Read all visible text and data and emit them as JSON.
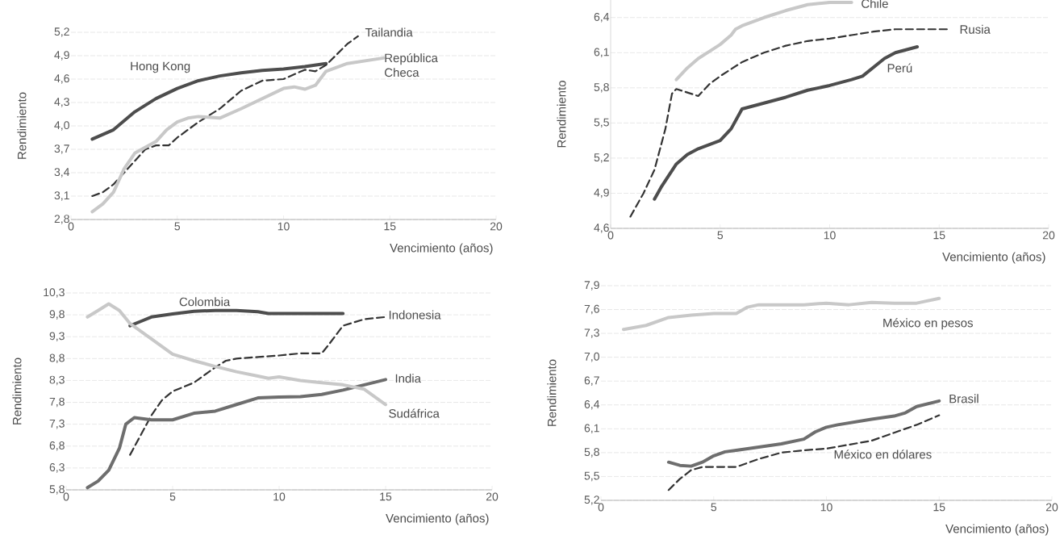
{
  "chart_data": [
    {
      "type": "line",
      "xlabel": "Vencimiento (años)",
      "ylabel": "Rendimiento",
      "xlim": [
        0,
        20
      ],
      "xticks": [
        0,
        5,
        10,
        15,
        20
      ],
      "ylim": [
        2.8,
        5.2
      ],
      "yticks": [
        {
          "value": 2.8,
          "label": "2,8"
        },
        {
          "value": 3.1,
          "label": "3,1"
        },
        {
          "value": 3.4,
          "label": "3,4"
        },
        {
          "value": 3.7,
          "label": "3,7"
        },
        {
          "value": 4.0,
          "label": "4,0"
        },
        {
          "value": 4.3,
          "label": "4,3"
        },
        {
          "value": 4.6,
          "label": "4,6"
        },
        {
          "value": 4.9,
          "label": "4,9"
        },
        {
          "value": 5.2,
          "label": "5,2"
        }
      ],
      "grid": "y",
      "marker": "none",
      "series": [
        {
          "name": "Hong Kong",
          "color": "#4d4d4d",
          "x": [
            1,
            2,
            3,
            4,
            5,
            6,
            7,
            8,
            9,
            10,
            11,
            12
          ],
          "values": [
            3.83,
            3.95,
            4.18,
            4.35,
            4.48,
            4.58,
            4.64,
            4.68,
            4.71,
            4.73,
            4.76,
            4.8
          ]
        },
        {
          "name": "Tailandia",
          "color": "#333333",
          "line_style": "dashed",
          "x": [
            1,
            1.5,
            2,
            3,
            3.5,
            4,
            4.6,
            5,
            6,
            7,
            8,
            9,
            10,
            11,
            11.5,
            12,
            13,
            13.5
          ],
          "values": [
            3.1,
            3.15,
            3.25,
            3.55,
            3.7,
            3.75,
            3.75,
            3.85,
            4.05,
            4.22,
            4.45,
            4.58,
            4.6,
            4.72,
            4.7,
            4.78,
            5.05,
            5.15
          ]
        },
        {
          "name": "República Checa",
          "color": "#c8c8c8",
          "x": [
            1,
            1.5,
            2,
            2.5,
            3,
            4,
            4.5,
            5,
            5.5,
            6,
            7,
            8,
            9,
            10,
            10.5,
            11,
            11.5,
            12,
            13,
            14.7
          ],
          "values": [
            2.9,
            3.0,
            3.15,
            3.45,
            3.65,
            3.8,
            3.95,
            4.05,
            4.1,
            4.12,
            4.1,
            4.22,
            4.35,
            4.48,
            4.5,
            4.47,
            4.52,
            4.7,
            4.8,
            4.87
          ]
        }
      ]
    },
    {
      "type": "line",
      "xlabel": "Vencimiento (años)",
      "ylabel": "Rendimiento",
      "xlim": [
        0,
        20
      ],
      "xticks": [
        0,
        5,
        10,
        15,
        20
      ],
      "ylim": [
        4.6,
        6.55
      ],
      "yticks": [
        {
          "value": 4.6,
          "label": "4,6"
        },
        {
          "value": 4.9,
          "label": "4,9"
        },
        {
          "value": 5.2,
          "label": "5,2"
        },
        {
          "value": 5.5,
          "label": "5,5"
        },
        {
          "value": 5.8,
          "label": "5,8"
        },
        {
          "value": 6.1,
          "label": "6,1"
        },
        {
          "value": 6.4,
          "label": "6,4"
        }
      ],
      "grid": "y",
      "marker": "none",
      "series": [
        {
          "name": "Chile",
          "color": "#c8c8c8",
          "x": [
            3,
            3.5,
            4,
            4.5,
            5,
            5.5,
            5.7,
            6,
            7,
            8,
            9,
            10,
            11
          ],
          "values": [
            5.87,
            5.97,
            6.05,
            6.11,
            6.17,
            6.25,
            6.3,
            6.33,
            6.4,
            6.46,
            6.51,
            6.53,
            6.53
          ]
        },
        {
          "name": "Rusia",
          "color": "#333333",
          "line_style": "dashed",
          "x": [
            0.9,
            1.5,
            2,
            2.5,
            2.8,
            3,
            3.5,
            4,
            4.5,
            5,
            6,
            7,
            8,
            9,
            10,
            11,
            12,
            13,
            15.5
          ],
          "values": [
            4.7,
            4.9,
            5.1,
            5.45,
            5.75,
            5.79,
            5.76,
            5.73,
            5.83,
            5.9,
            6.02,
            6.1,
            6.16,
            6.2,
            6.22,
            6.25,
            6.28,
            6.3,
            6.3
          ]
        },
        {
          "name": "Perú",
          "color": "#4d4d4d",
          "x": [
            2,
            2.3,
            3,
            3.5,
            4,
            5,
            5.5,
            6,
            7,
            8,
            9,
            10,
            11,
            11.5,
            12.5,
            13,
            14
          ],
          "values": [
            4.85,
            4.95,
            5.15,
            5.23,
            5.28,
            5.35,
            5.45,
            5.62,
            5.67,
            5.72,
            5.78,
            5.82,
            5.87,
            5.9,
            6.05,
            6.1,
            6.15
          ]
        }
      ]
    },
    {
      "type": "line",
      "xlabel": "Vencimiento (años)",
      "ylabel": "Rendimiento",
      "xlim": [
        0,
        20
      ],
      "xticks": [
        0,
        5,
        10,
        15,
        20
      ],
      "ylim": [
        5.8,
        10.3
      ],
      "yticks": [
        {
          "value": 5.8,
          "label": "5,8"
        },
        {
          "value": 6.3,
          "label": "6,3"
        },
        {
          "value": 6.8,
          "label": "6,8"
        },
        {
          "value": 7.3,
          "label": "7,3"
        },
        {
          "value": 7.8,
          "label": "7,8"
        },
        {
          "value": 8.3,
          "label": "8,3"
        },
        {
          "value": 8.8,
          "label": "8,8"
        },
        {
          "value": 9.3,
          "label": "9,3"
        },
        {
          "value": 9.8,
          "label": "9,8"
        },
        {
          "value": 10.3,
          "label": "10,3"
        }
      ],
      "grid": "y",
      "marker": "none",
      "series": [
        {
          "name": "Colombia",
          "color": "#4d4d4d",
          "x": [
            3,
            3.5,
            4,
            5,
            6,
            7,
            8,
            9,
            9.5,
            11,
            13
          ],
          "values": [
            9.55,
            9.65,
            9.75,
            9.82,
            9.88,
            9.9,
            9.9,
            9.87,
            9.83,
            9.83,
            9.83
          ]
        },
        {
          "name": "Indonesia",
          "color": "#333333",
          "line_style": "dashed",
          "x": [
            3,
            3.5,
            4,
            4.5,
            5,
            6,
            7,
            7.5,
            8,
            10,
            11,
            12,
            12.3,
            13,
            14,
            15
          ],
          "values": [
            6.6,
            7.05,
            7.5,
            7.85,
            8.05,
            8.25,
            8.6,
            8.75,
            8.8,
            8.87,
            8.92,
            8.92,
            9.1,
            9.55,
            9.7,
            9.75
          ]
        },
        {
          "name": "India",
          "color": "#6e6e6e",
          "x": [
            1,
            1.5,
            2,
            2.5,
            2.8,
            3.2,
            4,
            5,
            6,
            7,
            8,
            9,
            10,
            11,
            12,
            13,
            14,
            15
          ],
          "values": [
            5.85,
            6.0,
            6.25,
            6.75,
            7.3,
            7.45,
            7.4,
            7.4,
            7.55,
            7.6,
            7.75,
            7.9,
            7.92,
            7.93,
            7.98,
            8.08,
            8.2,
            8.32
          ]
        },
        {
          "name": "Sudáfrica",
          "color": "#c8c8c8",
          "x": [
            1,
            1.5,
            2,
            2.5,
            3,
            4,
            5,
            6,
            7,
            8,
            9,
            9.5,
            10,
            11,
            12,
            13,
            14,
            15
          ],
          "values": [
            9.75,
            9.9,
            10.05,
            9.9,
            9.6,
            9.25,
            8.9,
            8.75,
            8.62,
            8.5,
            8.4,
            8.35,
            8.38,
            8.3,
            8.25,
            8.2,
            8.1,
            7.75
          ]
        }
      ]
    },
    {
      "type": "line",
      "xlabel": "Vencimiento (años)",
      "ylabel": "Rendimiento",
      "xlim": [
        0,
        20
      ],
      "xticks": [
        0,
        5,
        10,
        15,
        20
      ],
      "ylim": [
        5.2,
        7.9
      ],
      "yticks": [
        {
          "value": 5.2,
          "label": "5,2"
        },
        {
          "value": 5.5,
          "label": "5,5"
        },
        {
          "value": 5.8,
          "label": "5,8"
        },
        {
          "value": 6.1,
          "label": "6,1"
        },
        {
          "value": 6.4,
          "label": "6,4"
        },
        {
          "value": 6.7,
          "label": "6,7"
        },
        {
          "value": 7.0,
          "label": "7,0"
        },
        {
          "value": 7.3,
          "label": "7,3"
        },
        {
          "value": 7.6,
          "label": "7,6"
        },
        {
          "value": 7.9,
          "label": "7,9"
        }
      ],
      "grid": "y",
      "marker": "none",
      "series": [
        {
          "name": "México en pesos",
          "color": "#c8c8c8",
          "x": [
            1,
            2,
            3,
            4,
            5,
            6,
            6.5,
            7,
            9,
            10,
            11,
            12,
            13,
            14,
            15
          ],
          "values": [
            7.35,
            7.4,
            7.5,
            7.53,
            7.55,
            7.55,
            7.63,
            7.66,
            7.66,
            7.68,
            7.66,
            7.69,
            7.68,
            7.68,
            7.74
          ]
        },
        {
          "name": "Brasil",
          "color": "#6e6e6e",
          "x": [
            3,
            3.5,
            4,
            4.5,
            5,
            5.5,
            6,
            7,
            8,
            9,
            9.5,
            10,
            10.5,
            12,
            13,
            13.5,
            14,
            15
          ],
          "values": [
            5.68,
            5.64,
            5.63,
            5.68,
            5.76,
            5.81,
            5.83,
            5.87,
            5.91,
            5.97,
            6.06,
            6.12,
            6.15,
            6.22,
            6.26,
            6.3,
            6.38,
            6.45
          ]
        },
        {
          "name": "México en dólares",
          "color": "#333333",
          "line_style": "dashed",
          "x": [
            3,
            3.5,
            4,
            4.5,
            6,
            7,
            8,
            9,
            10,
            11,
            12,
            13,
            14,
            15
          ],
          "values": [
            5.33,
            5.47,
            5.58,
            5.62,
            5.62,
            5.72,
            5.8,
            5.83,
            5.85,
            5.9,
            5.95,
            6.05,
            6.15,
            6.27
          ]
        }
      ]
    }
  ]
}
